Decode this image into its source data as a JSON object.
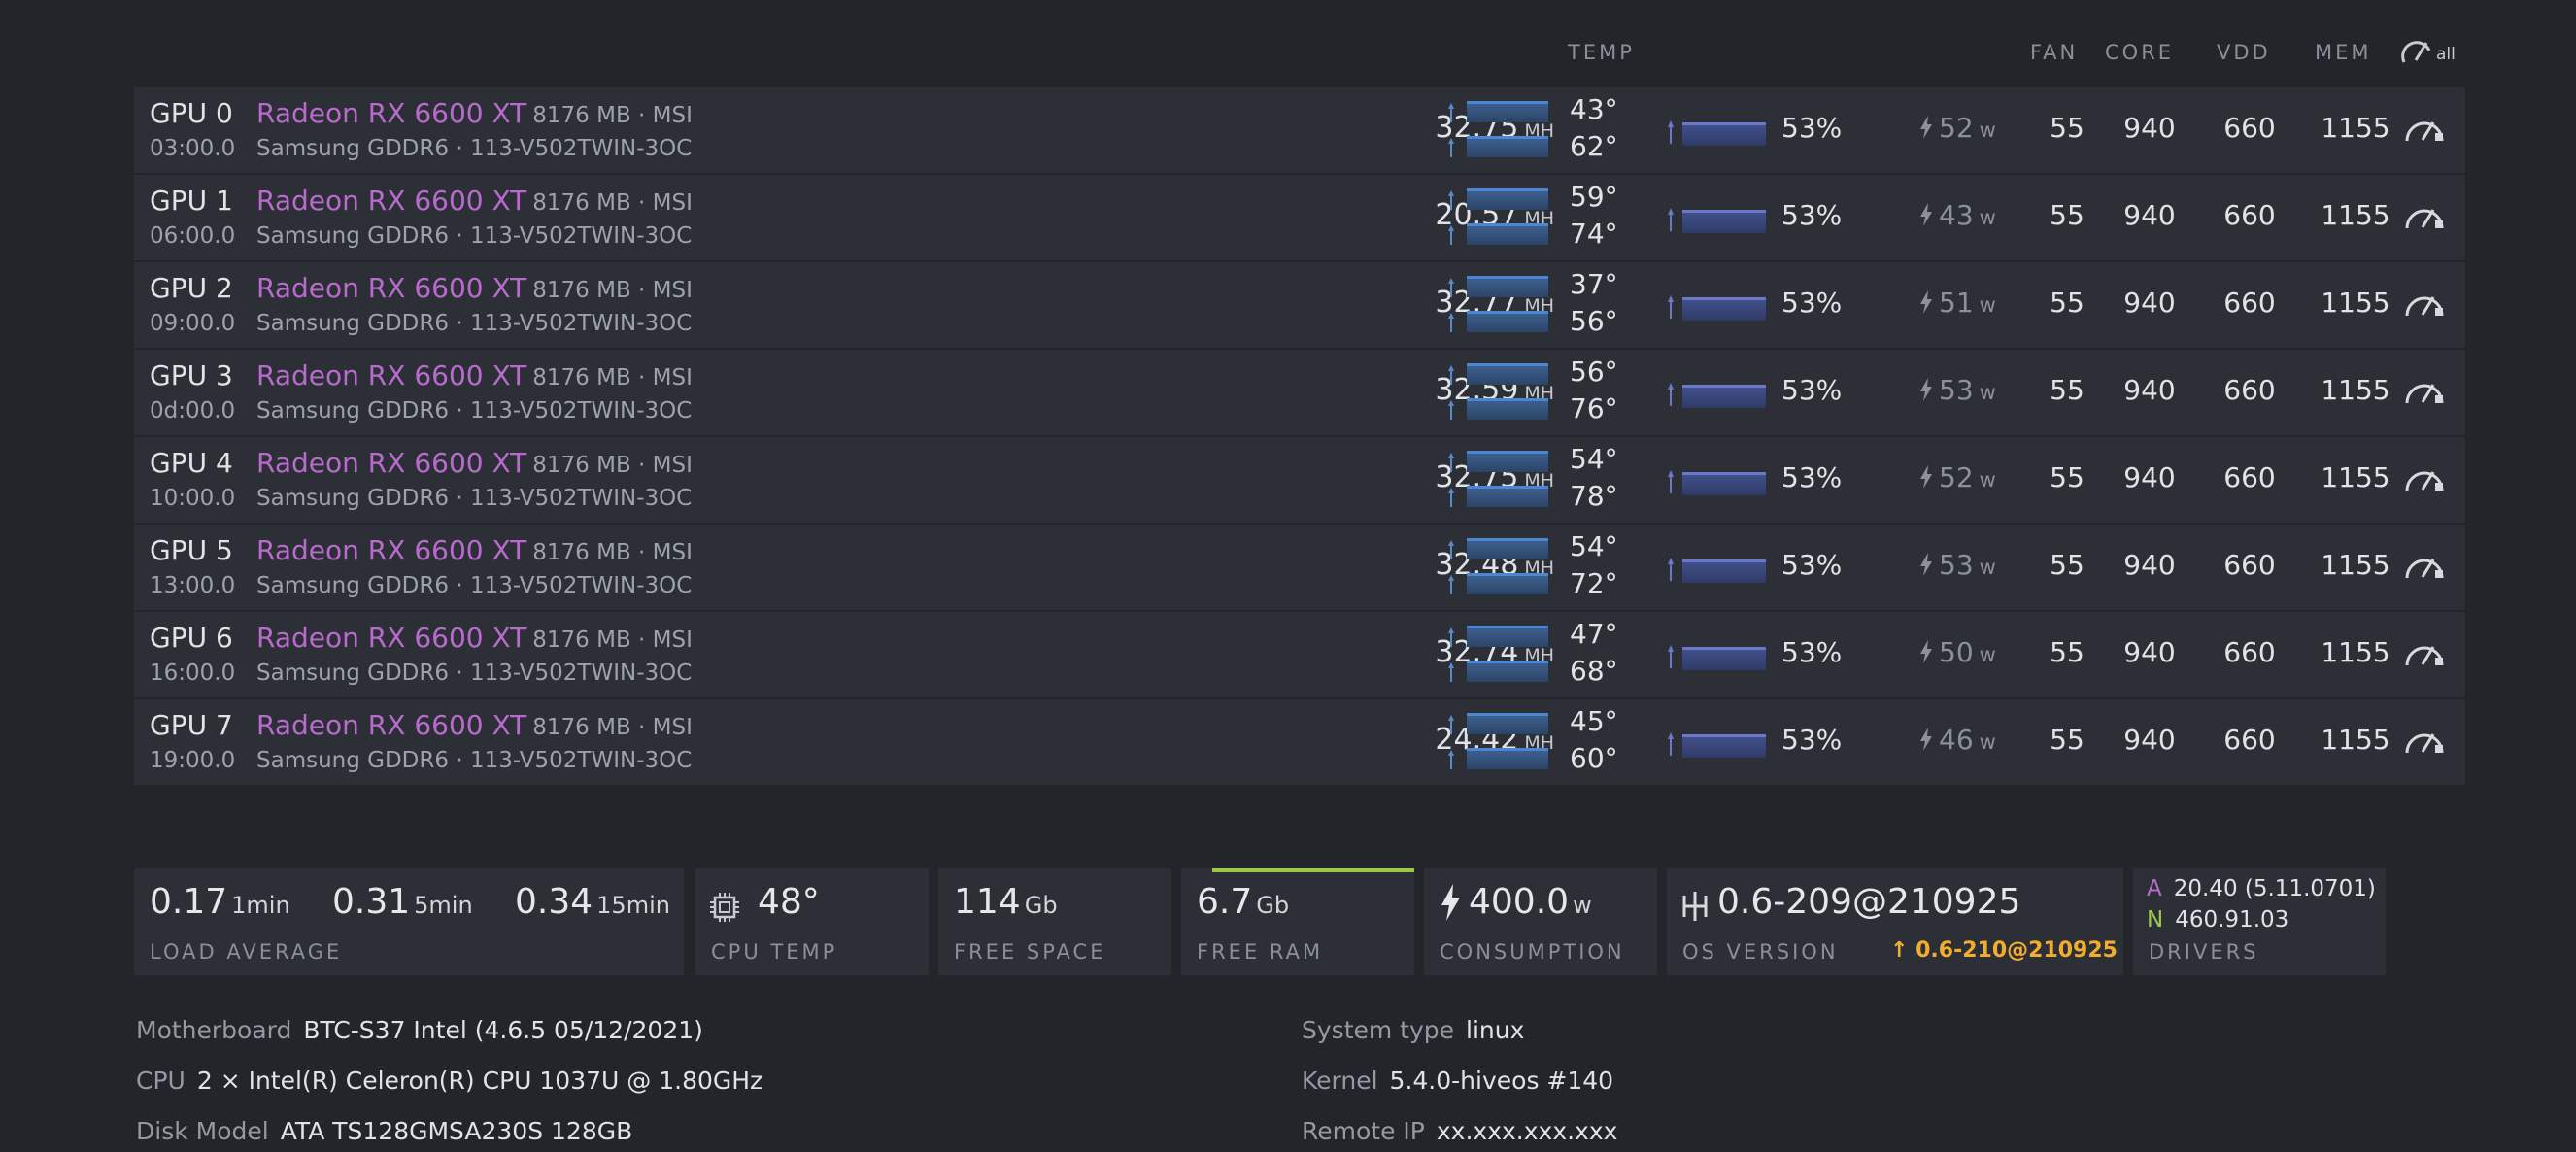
{
  "header": {
    "temp": "TEMP",
    "fan": "FAN",
    "core": "CORE",
    "vdd": "VDD",
    "mem": "MEM",
    "all": "all"
  },
  "gpus": [
    {
      "id": "GPU 0",
      "bus": "03:00.0",
      "model": "Radeon RX 6600 XT",
      "mem_info": "8176 MB · MSI",
      "mem_detail": "Samsung GDDR6 · 113-V502TWIN-3OC",
      "hashrate": "32.75",
      "hash_unit": "MH",
      "temp_core": "43°",
      "temp_mem": "62°",
      "fan_pct": "53%",
      "power": "52",
      "power_unit": "w",
      "fan": "55",
      "core": "940",
      "vdd": "660",
      "mem": "1155"
    },
    {
      "id": "GPU 1",
      "bus": "06:00.0",
      "model": "Radeon RX 6600 XT",
      "mem_info": "8176 MB · MSI",
      "mem_detail": "Samsung GDDR6 · 113-V502TWIN-3OC",
      "hashrate": "20.57",
      "hash_unit": "MH",
      "temp_core": "59°",
      "temp_mem": "74°",
      "fan_pct": "53%",
      "power": "43",
      "power_unit": "w",
      "fan": "55",
      "core": "940",
      "vdd": "660",
      "mem": "1155"
    },
    {
      "id": "GPU 2",
      "bus": "09:00.0",
      "model": "Radeon RX 6600 XT",
      "mem_info": "8176 MB · MSI",
      "mem_detail": "Samsung GDDR6 · 113-V502TWIN-3OC",
      "hashrate": "32.77",
      "hash_unit": "MH",
      "temp_core": "37°",
      "temp_mem": "56°",
      "fan_pct": "53%",
      "power": "51",
      "power_unit": "w",
      "fan": "55",
      "core": "940",
      "vdd": "660",
      "mem": "1155"
    },
    {
      "id": "GPU 3",
      "bus": "0d:00.0",
      "model": "Radeon RX 6600 XT",
      "mem_info": "8176 MB · MSI",
      "mem_detail": "Samsung GDDR6 · 113-V502TWIN-3OC",
      "hashrate": "32.59",
      "hash_unit": "MH",
      "temp_core": "56°",
      "temp_mem": "76°",
      "fan_pct": "53%",
      "power": "53",
      "power_unit": "w",
      "fan": "55",
      "core": "940",
      "vdd": "660",
      "mem": "1155"
    },
    {
      "id": "GPU 4",
      "bus": "10:00.0",
      "model": "Radeon RX 6600 XT",
      "mem_info": "8176 MB · MSI",
      "mem_detail": "Samsung GDDR6 · 113-V502TWIN-3OC",
      "hashrate": "32.75",
      "hash_unit": "MH",
      "temp_core": "54°",
      "temp_mem": "78°",
      "fan_pct": "53%",
      "power": "52",
      "power_unit": "w",
      "fan": "55",
      "core": "940",
      "vdd": "660",
      "mem": "1155"
    },
    {
      "id": "GPU 5",
      "bus": "13:00.0",
      "model": "Radeon RX 6600 XT",
      "mem_info": "8176 MB · MSI",
      "mem_detail": "Samsung GDDR6 · 113-V502TWIN-3OC",
      "hashrate": "32.48",
      "hash_unit": "MH",
      "temp_core": "54°",
      "temp_mem": "72°",
      "fan_pct": "53%",
      "power": "53",
      "power_unit": "w",
      "fan": "55",
      "core": "940",
      "vdd": "660",
      "mem": "1155"
    },
    {
      "id": "GPU 6",
      "bus": "16:00.0",
      "model": "Radeon RX 6600 XT",
      "mem_info": "8176 MB · MSI",
      "mem_detail": "Samsung GDDR6 · 113-V502TWIN-3OC",
      "hashrate": "32.74",
      "hash_unit": "MH",
      "temp_core": "47°",
      "temp_mem": "68°",
      "fan_pct": "53%",
      "power": "50",
      "power_unit": "w",
      "fan": "55",
      "core": "940",
      "vdd": "660",
      "mem": "1155"
    },
    {
      "id": "GPU 7",
      "bus": "19:00.0",
      "model": "Radeon RX 6600 XT",
      "mem_info": "8176 MB · MSI",
      "mem_detail": "Samsung GDDR6 · 113-V502TWIN-3OC",
      "hashrate": "24.42",
      "hash_unit": "MH",
      "temp_core": "45°",
      "temp_mem": "60°",
      "fan_pct": "53%",
      "power": "46",
      "power_unit": "w",
      "fan": "55",
      "core": "940",
      "vdd": "660",
      "mem": "1155"
    }
  ],
  "stats": {
    "load": {
      "v1": "0.17",
      "u1": "1min",
      "v5": "0.31",
      "u5": "5min",
      "v15": "0.34",
      "u15": "15min",
      "label": "LOAD AVERAGE"
    },
    "cpu_temp": {
      "value": "48°",
      "label": "CPU TEMP"
    },
    "free_space": {
      "value": "114",
      "unit": "Gb",
      "label": "FREE SPACE"
    },
    "free_ram": {
      "value": "6.7",
      "unit": "Gb",
      "label": "FREE RAM"
    },
    "consumption": {
      "value": "400.0",
      "unit": "w",
      "label": "CONSUMPTION"
    },
    "os": {
      "value": "0.6-209@210925",
      "label": "OS VERSION",
      "update": "0.6-210@210925"
    },
    "drivers": {
      "a_tag": "A",
      "a_value": "20.40 (5.11.0701)",
      "n_tag": "N",
      "n_value": "460.91.03",
      "label": "DRIVERS"
    }
  },
  "info": {
    "motherboard_k": "Motherboard",
    "motherboard_v": "BTC-S37 Intel (4.6.5 05/12/2021)",
    "cpu_k": "CPU",
    "cpu_v": "2 × Intel(R) Celeron(R) CPU 1037U @ 1.80GHz",
    "disk_k": "Disk Model",
    "disk_v": "ATA TS128GMSA230S 128GB",
    "systype_k": "System type",
    "systype_v": "linux",
    "kernel_k": "Kernel",
    "kernel_v": "5.4.0-hiveos #140",
    "ip_k": "Remote IP",
    "ip_v": "xx.xxx.xxx.xxx"
  },
  "colors": {
    "accent_model": "#b96bcd",
    "ram_bar": "#9ec847",
    "update": "#f3ad2e",
    "driver_a": "#b96bcd",
    "driver_n": "#9ec847"
  }
}
